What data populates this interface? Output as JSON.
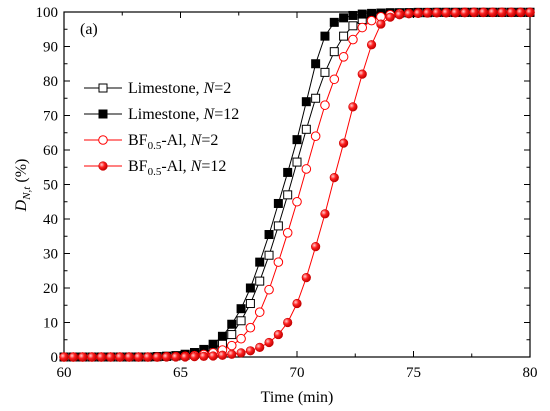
{
  "chart_data": {
    "type": "scatter",
    "panel_label": "(a)",
    "xlabel": "Time (min)",
    "ylabel": {
      "main": "D",
      "sub": "N,t",
      "unit": " (%)"
    },
    "xlim": [
      60,
      80
    ],
    "ylim": [
      0,
      100
    ],
    "xticks": [
      60,
      65,
      70,
      75,
      80
    ],
    "yticks": [
      0,
      10,
      20,
      30,
      40,
      50,
      60,
      70,
      80,
      90,
      100
    ],
    "grid": false,
    "legend_position": "left",
    "series": [
      {
        "key": "lime2",
        "legend": {
          "base": "Limestone, ",
          "italic": "N",
          "suffix": "=2"
        },
        "color": "#000000",
        "marker": "square-open",
        "x": [
          60.0,
          60.4,
          60.8,
          61.2,
          61.6,
          62.0,
          62.4,
          62.8,
          63.2,
          63.6,
          64.0,
          64.4,
          64.8,
          65.2,
          65.6,
          66.0,
          66.4,
          66.8,
          67.2,
          67.6,
          68.0,
          68.4,
          68.8,
          69.2,
          69.6,
          70.0,
          70.4,
          70.8,
          71.2,
          71.6,
          72.0,
          72.4,
          72.8,
          73.2,
          73.6,
          74.0,
          74.4,
          74.8,
          75.2,
          75.6,
          76.0,
          76.4,
          76.8,
          77.2,
          77.6,
          78.0,
          78.4,
          78.8,
          79.2,
          79.6,
          80.0
        ],
        "y": [
          0,
          0,
          0,
          0,
          0,
          0,
          0,
          0,
          0,
          0,
          0.1,
          0.2,
          0.3,
          0.5,
          0.8,
          1.3,
          2.3,
          4,
          6.5,
          10.5,
          15.5,
          22,
          29.5,
          38,
          47,
          56.5,
          66,
          75,
          82.5,
          88.5,
          93,
          96,
          97.8,
          98.8,
          99.3,
          99.6,
          99.7,
          99.8,
          99.8,
          99.8,
          99.9,
          99.9,
          99.9,
          99.9,
          99.9,
          99.9,
          99.9,
          99.9,
          99.9,
          99.9,
          99.9
        ]
      },
      {
        "key": "lime12",
        "legend": {
          "base": "Limestone, ",
          "italic": "N",
          "suffix": "=12"
        },
        "color": "#000000",
        "marker": "square-filled",
        "x": [
          60.0,
          60.4,
          60.8,
          61.2,
          61.6,
          62.0,
          62.4,
          62.8,
          63.2,
          63.6,
          64.0,
          64.4,
          64.8,
          65.2,
          65.6,
          66.0,
          66.4,
          66.8,
          67.2,
          67.6,
          68.0,
          68.4,
          68.8,
          69.2,
          69.6,
          70.0,
          70.4,
          70.8,
          71.2,
          71.6,
          72.0,
          72.4,
          72.8,
          73.2,
          73.6,
          74.0,
          74.4,
          74.8,
          75.2,
          75.6,
          76.0,
          76.4,
          76.8,
          77.2,
          77.6,
          78.0,
          78.4,
          78.8,
          79.2,
          79.6,
          80.0
        ],
        "y": [
          0,
          0,
          0,
          0,
          0,
          0,
          0,
          0,
          0,
          0,
          0.1,
          0.2,
          0.4,
          0.8,
          1.3,
          2.2,
          3.7,
          6,
          9.5,
          14,
          20,
          27.5,
          35.5,
          44.5,
          53.5,
          63,
          74,
          85,
          93,
          97,
          98.3,
          99,
          99.4,
          99.6,
          99.7,
          99.8,
          99.8,
          99.8,
          99.9,
          99.9,
          99.9,
          99.9,
          99.9,
          99.9,
          99.9,
          99.9,
          99.9,
          99.9,
          99.9,
          99.9,
          99.9
        ]
      },
      {
        "key": "bf2",
        "legend": {
          "base": "BF",
          "sub": "0.5",
          "mid": "-Al, ",
          "italic": "N",
          "suffix": "=2"
        },
        "color": "#ff0000",
        "marker": "circle-open",
        "x": [
          60.0,
          60.4,
          60.8,
          61.2,
          61.6,
          62.0,
          62.4,
          62.8,
          63.2,
          63.6,
          64.0,
          64.4,
          64.8,
          65.2,
          65.6,
          66.0,
          66.4,
          66.8,
          67.2,
          67.6,
          68.0,
          68.4,
          68.8,
          69.2,
          69.6,
          70.0,
          70.4,
          70.8,
          71.2,
          71.6,
          72.0,
          72.4,
          72.8,
          73.2,
          73.6,
          74.0,
          74.4,
          74.8,
          75.2,
          75.6,
          76.0,
          76.4,
          76.8,
          77.2,
          77.6,
          78.0,
          78.4,
          78.8,
          79.2,
          79.6,
          80.0
        ],
        "y": [
          0,
          0,
          0,
          0,
          0,
          0,
          0,
          0,
          0,
          0,
          0,
          0.1,
          0.1,
          0.2,
          0.4,
          0.7,
          1.2,
          2,
          3.3,
          5.3,
          8.5,
          13,
          19.5,
          27.5,
          36,
          45,
          54.5,
          64,
          73,
          80.5,
          87,
          92,
          95.5,
          97.5,
          98.6,
          99.2,
          99.5,
          99.6,
          99.7,
          99.8,
          99.8,
          99.8,
          99.8,
          99.9,
          99.9,
          99.9,
          99.9,
          99.9,
          99.9,
          99.9,
          99.9
        ]
      },
      {
        "key": "bf12",
        "legend": {
          "base": "BF",
          "sub": "0.5",
          "mid": "-Al, ",
          "italic": "N",
          "suffix": "=12"
        },
        "color": "#ff0000",
        "marker": "circle-filled",
        "x": [
          60.0,
          60.4,
          60.8,
          61.2,
          61.6,
          62.0,
          62.4,
          62.8,
          63.2,
          63.6,
          64.0,
          64.4,
          64.8,
          65.2,
          65.6,
          66.0,
          66.4,
          66.8,
          67.2,
          67.6,
          68.0,
          68.4,
          68.8,
          69.2,
          69.6,
          70.0,
          70.4,
          70.8,
          71.2,
          71.6,
          72.0,
          72.4,
          72.8,
          73.2,
          73.6,
          74.0,
          74.4,
          74.8,
          75.2,
          75.6,
          76.0,
          76.4,
          76.8,
          77.2,
          77.6,
          78.0,
          78.4,
          78.8,
          79.2,
          79.6,
          80.0
        ],
        "y": [
          0,
          0,
          0,
          0,
          0,
          0,
          0,
          0,
          0,
          0,
          0,
          0,
          0,
          0,
          0.1,
          0.2,
          0.3,
          0.5,
          0.8,
          1.2,
          1.8,
          2.8,
          4.2,
          6.5,
          10,
          15.5,
          23,
          32,
          41.5,
          52,
          62,
          72.5,
          82,
          90.5,
          96.5,
          98.5,
          99.2,
          99.5,
          99.6,
          99.7,
          99.8,
          99.8,
          99.8,
          99.8,
          99.9,
          99.9,
          99.9,
          99.9,
          99.9,
          99.9,
          99.9
        ]
      }
    ]
  }
}
